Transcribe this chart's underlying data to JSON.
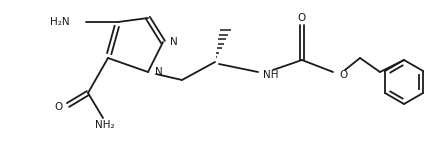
{
  "bg_color": "#ffffff",
  "line_color": "#1a1a1a",
  "line_width": 1.3,
  "font_size": 7.5,
  "figsize": [
    4.42,
    1.46
  ],
  "dpi": 100,
  "xlim": [
    0,
    442
  ],
  "ylim": [
    0,
    146
  ]
}
